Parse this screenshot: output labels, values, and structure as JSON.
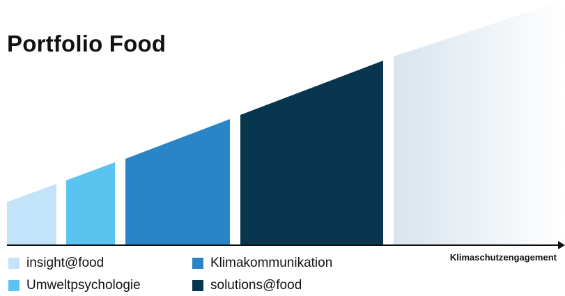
{
  "title": "Portfolio Food",
  "axis_label": "Klimaschutzengagement",
  "colors": {
    "insight": "#c3e3f8",
    "umwelt": "#5bc3f0",
    "klima": "#2a85c8",
    "solutions": "#08364f",
    "future_start": "#d9e4ee",
    "future_end": "#ffffff",
    "axis": "#111111"
  },
  "legend": [
    {
      "label": "insight@food",
      "color": "#c3e3f8"
    },
    {
      "label": "Umweltpsychologie",
      "color": "#5bc3f0"
    },
    {
      "label": "Klimakommunikation",
      "color": "#2a85c8"
    },
    {
      "label": "solutions@food",
      "color": "#08364f"
    }
  ]
}
